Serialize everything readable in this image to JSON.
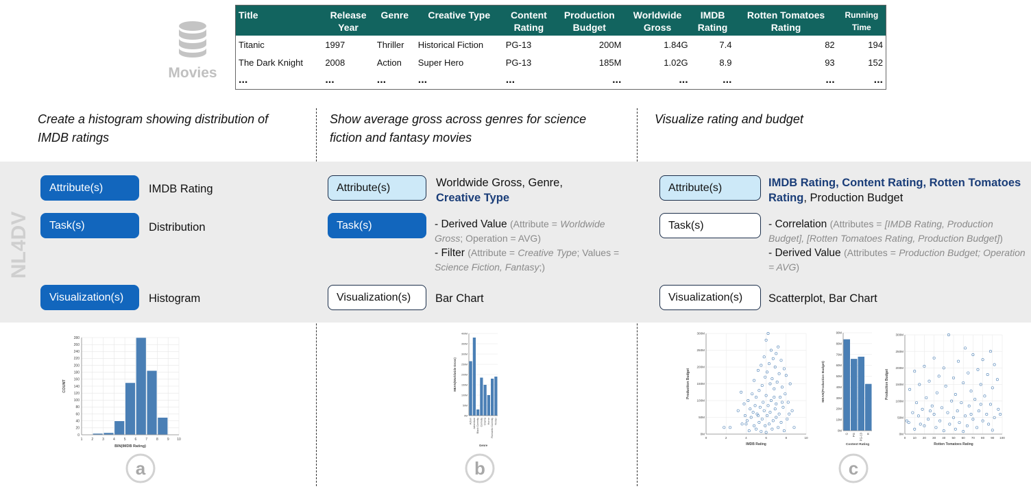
{
  "dataset": {
    "icon": "database-icon",
    "label": "Movies",
    "columns": [
      [
        "Title"
      ],
      [
        "Release",
        "Year"
      ],
      [
        "Genre"
      ],
      [
        "Creative Type"
      ],
      [
        "Content",
        "Rating"
      ],
      [
        "Production",
        "Budget"
      ],
      [
        "Worldwide",
        "Gross"
      ],
      [
        "IMDB",
        "Rating"
      ],
      [
        "Rotten Tomatoes",
        "Rating"
      ],
      [
        "Running",
        "Time"
      ]
    ],
    "rows": [
      [
        "Titanic",
        "1997",
        "Thriller",
        "Historical Fiction",
        "PG-13",
        "200M",
        "1.84G",
        "7.4",
        "82",
        "194"
      ],
      [
        "The Dark Knight",
        "2008",
        "Action",
        "Super Hero",
        "PG-13",
        "185M",
        "1.02G",
        "8.9",
        "93",
        "152"
      ]
    ],
    "ellipsis": [
      "...",
      "...",
      "...",
      "...",
      "...",
      "...",
      "...",
      "...",
      "...",
      "..."
    ]
  },
  "side_label": "NL4DV",
  "panels": [
    {
      "letter": "a",
      "query_lines": [
        "Create a histogram showing distribution of",
        "IMDB ratings"
      ],
      "attributes_label": "Attribute(s)",
      "attributes_value": "IMDB Rating",
      "tasks_label": "Task(s)",
      "tasks_value": "Distribution",
      "vis_label": "Visualization(s)",
      "vis_value": "Histogram"
    },
    {
      "letter": "b",
      "query_lines": [
        "Show average gross across genres for science",
        "fiction and fantasy movies"
      ],
      "attributes_label": "Attribute(s)",
      "attributes_value_plain": "Worldwide Gross, Genre,",
      "attributes_value_hl": "Creative Type",
      "tasks_label": "Task(s)",
      "task1_main": "- Derived Value",
      "task1_p1": "(Attribute =",
      "task1_i1": "Worldwide Gross",
      "task1_p2": "; Operation = AVG)",
      "task2_main": "- Filter",
      "task2_p1": "(Attribute =",
      "task2_i1": "Creative Type",
      "task2_p2": "; Values =",
      "task2_i2": "Science Fiction, Fantasy",
      "task2_p3": ";)",
      "vis_label": "Visualization(s)",
      "vis_value": "Bar Chart"
    },
    {
      "letter": "c",
      "query_lines": [
        "Visualize rating and budget"
      ],
      "attributes_label": "Attribute(s)",
      "attributes_value_hl": "IMDB Rating, Content Rating, Rotten Tomatoes Rating",
      "attributes_value_plain": ", Production Budget",
      "tasks_label": "Task(s)",
      "task1_main": "- Correlation",
      "task1_p1": "(Attributes =",
      "task1_i1": "[IMDB Rating, Production Budget], [Rotten Tomatoes Rating, Production Budget]",
      "task1_p2": ")",
      "task2_main": "- Derived Value",
      "task2_p1": "(Attributes =",
      "task2_i1": "Production Budget; Operation = AVG",
      "task2_p2": ")",
      "vis_label": "Visualization(s)",
      "vis_value": "Scatterplot, Bar Chart"
    }
  ],
  "chart_data": [
    {
      "type": "bar",
      "xlabel": "BIN(IMDB Rating)",
      "ylabel": "COUNT",
      "x_ticks": [
        "1",
        "2",
        "3",
        "4",
        "5",
        "6",
        "7",
        "8",
        "9",
        "10"
      ],
      "y_ticks": [
        "0",
        "20",
        "40",
        "60",
        "80",
        "100",
        "120",
        "140",
        "160",
        "180",
        "200",
        "220",
        "240",
        "260",
        "280"
      ],
      "bins": [
        [
          2,
          3
        ],
        [
          3,
          4
        ],
        [
          4,
          5
        ],
        [
          5,
          6
        ],
        [
          6,
          7
        ],
        [
          7,
          8
        ],
        [
          8,
          9
        ]
      ],
      "values": [
        4,
        6,
        40,
        150,
        280,
        185,
        50
      ],
      "xlim": [
        1,
        10
      ],
      "ylim": [
        0,
        280
      ],
      "color": "#4a7fb5"
    },
    {
      "type": "bar",
      "xlabel": "Genre",
      "ylabel": "MEAN(Worldwide Gross)",
      "y_ticks": [
        "0M",
        "50M",
        "100M",
        "150M",
        "200M",
        "250M",
        "300M",
        "350M",
        "400M"
      ],
      "categories": [
        "Action",
        "Adventure",
        "Black Comedy",
        "Comedy",
        "Drama",
        "Horror",
        "Romantic Comedy",
        "Thriller"
      ],
      "values": [
        265,
        380,
        30,
        185,
        150,
        100,
        180,
        190
      ],
      "ylim": [
        0,
        400
      ],
      "color": "#4a7fb5"
    },
    {
      "type": "scatter",
      "xlabel": "IMDB Rating",
      "ylabel": "Production Budget",
      "x_ticks": [
        "0",
        "2",
        "4",
        "6",
        "8",
        "10"
      ],
      "y_ticks": [
        "0M",
        "50M",
        "100M",
        "150M",
        "200M",
        "250M",
        "300M"
      ],
      "xlim": [
        0,
        10
      ],
      "ylim": [
        0,
        300
      ],
      "points": [
        [
          6.2,
          300
        ],
        [
          6.0,
          280
        ],
        [
          7.2,
          260
        ],
        [
          6.5,
          250
        ],
        [
          7.0,
          240
        ],
        [
          5.8,
          230
        ],
        [
          6.7,
          225
        ],
        [
          7.5,
          220
        ],
        [
          6.3,
          210
        ],
        [
          5.5,
          205
        ],
        [
          6.9,
          200
        ],
        [
          7.8,
          195
        ],
        [
          5.2,
          190
        ],
        [
          6.1,
          185
        ],
        [
          7.3,
          180
        ],
        [
          8.0,
          175
        ],
        [
          5.9,
          170
        ],
        [
          6.6,
          165
        ],
        [
          4.8,
          160
        ],
        [
          7.1,
          155
        ],
        [
          6.4,
          150
        ],
        [
          8.4,
          150
        ],
        [
          5.6,
          145
        ],
        [
          7.6,
          140
        ],
        [
          3.5,
          125
        ],
        [
          6.8,
          135
        ],
        [
          5.3,
          130
        ],
        [
          4.6,
          120
        ],
        [
          7.9,
          120
        ],
        [
          6.0,
          115
        ],
        [
          5.0,
          110
        ],
        [
          7.4,
          110
        ],
        [
          4.2,
          100
        ],
        [
          6.5,
          100
        ],
        [
          8.2,
          95
        ],
        [
          5.7,
          95
        ],
        [
          3.8,
          90
        ],
        [
          7.0,
          90
        ],
        [
          4.9,
          85
        ],
        [
          6.2,
          85
        ],
        [
          5.4,
          80
        ],
        [
          7.7,
          80
        ],
        [
          4.4,
          75
        ],
        [
          6.9,
          75
        ],
        [
          3.2,
          70
        ],
        [
          5.8,
          70
        ],
        [
          8.6,
          70
        ],
        [
          4.7,
          65
        ],
        [
          6.4,
          65
        ],
        [
          7.3,
          60
        ],
        [
          5.1,
          60
        ],
        [
          3.9,
          55
        ],
        [
          6.1,
          55
        ],
        [
          4.5,
          50
        ],
        [
          7.0,
          50
        ],
        [
          5.6,
          45
        ],
        [
          8.1,
          45
        ],
        [
          4.1,
          40
        ],
        [
          6.7,
          40
        ],
        [
          5.3,
          35
        ],
        [
          7.5,
          35
        ],
        [
          3.6,
          30
        ],
        [
          6.3,
          30
        ],
        [
          4.8,
          25
        ],
        [
          5.9,
          25
        ],
        [
          7.2,
          20
        ],
        [
          2.4,
          20
        ],
        [
          1.8,
          20
        ],
        [
          5.0,
          15
        ],
        [
          6.6,
          15
        ],
        [
          4.3,
          10
        ],
        [
          7.8,
          10
        ],
        [
          5.5,
          8
        ],
        [
          6.0,
          5
        ],
        [
          8.8,
          20
        ],
        [
          8.3,
          60
        ],
        [
          6.8,
          110
        ],
        [
          5.2,
          55
        ],
        [
          7.6,
          95
        ],
        [
          4.0,
          30
        ]
      ],
      "color": "#4a7fb5"
    },
    {
      "type": "bar",
      "xlabel": "Content Rating",
      "ylabel": "MEAN(Production Budget)",
      "y_ticks": [
        "0M",
        "10M",
        "20M",
        "30M",
        "40M",
        "50M",
        "60M",
        "70M",
        "80M",
        "90M"
      ],
      "categories": [
        "G",
        "PG",
        "PG-13",
        "R"
      ],
      "values": [
        84,
        66,
        68,
        43
      ],
      "ylim": [
        0,
        90
      ],
      "color": "#4a7fb5"
    },
    {
      "type": "scatter",
      "xlabel": "Rotten Tomatoes Rating",
      "ylabel": "Production Budget",
      "x_ticks": [
        "0",
        "10",
        "20",
        "30",
        "40",
        "50",
        "60",
        "70",
        "80",
        "90",
        "100"
      ],
      "y_ticks": [
        "0M",
        "50M",
        "100M",
        "150M",
        "200M",
        "250M",
        "300M"
      ],
      "xlim": [
        0,
        100
      ],
      "ylim": [
        0,
        300
      ],
      "points": [
        [
          45,
          300
        ],
        [
          62,
          260
        ],
        [
          88,
          250
        ],
        [
          70,
          240
        ],
        [
          30,
          230
        ],
        [
          80,
          225
        ],
        [
          55,
          220
        ],
        [
          92,
          210
        ],
        [
          20,
          205
        ],
        [
          40,
          200
        ],
        [
          75,
          195
        ],
        [
          10,
          190
        ],
        [
          65,
          185
        ],
        [
          85,
          180
        ],
        [
          35,
          175
        ],
        [
          50,
          170
        ],
        [
          95,
          165
        ],
        [
          25,
          160
        ],
        [
          60,
          155
        ],
        [
          15,
          150
        ],
        [
          78,
          150
        ],
        [
          42,
          145
        ],
        [
          90,
          140
        ],
        [
          5,
          135
        ],
        [
          68,
          130
        ],
        [
          33,
          125
        ],
        [
          52,
          120
        ],
        [
          82,
          115
        ],
        [
          22,
          110
        ],
        [
          72,
          105
        ],
        [
          48,
          100
        ],
        [
          12,
          95
        ],
        [
          58,
          95
        ],
        [
          88,
          90
        ],
        [
          28,
          85
        ],
        [
          66,
          85
        ],
        [
          38,
          80
        ],
        [
          96,
          75
        ],
        [
          18,
          75
        ],
        [
          54,
          70
        ],
        [
          76,
          70
        ],
        [
          8,
          65
        ],
        [
          44,
          65
        ],
        [
          84,
          60
        ],
        [
          30,
          60
        ],
        [
          62,
          55
        ],
        [
          14,
          55
        ],
        [
          50,
          50
        ],
        [
          92,
          50
        ],
        [
          24,
          45
        ],
        [
          70,
          45
        ],
        [
          36,
          40
        ],
        [
          80,
          40
        ],
        [
          4,
          35
        ],
        [
          56,
          35
        ],
        [
          46,
          30
        ],
        [
          86,
          30
        ],
        [
          20,
          25
        ],
        [
          64,
          25
        ],
        [
          32,
          20
        ],
        [
          74,
          20
        ],
        [
          10,
          15
        ],
        [
          52,
          15
        ],
        [
          90,
          12
        ],
        [
          40,
          10
        ],
        [
          60,
          8
        ],
        [
          2,
          40
        ],
        [
          98,
          60
        ],
        [
          16,
          30
        ],
        [
          78,
          90
        ],
        [
          26,
          70
        ],
        [
          68,
          60
        ]
      ],
      "color": "#4a7fb5"
    }
  ]
}
